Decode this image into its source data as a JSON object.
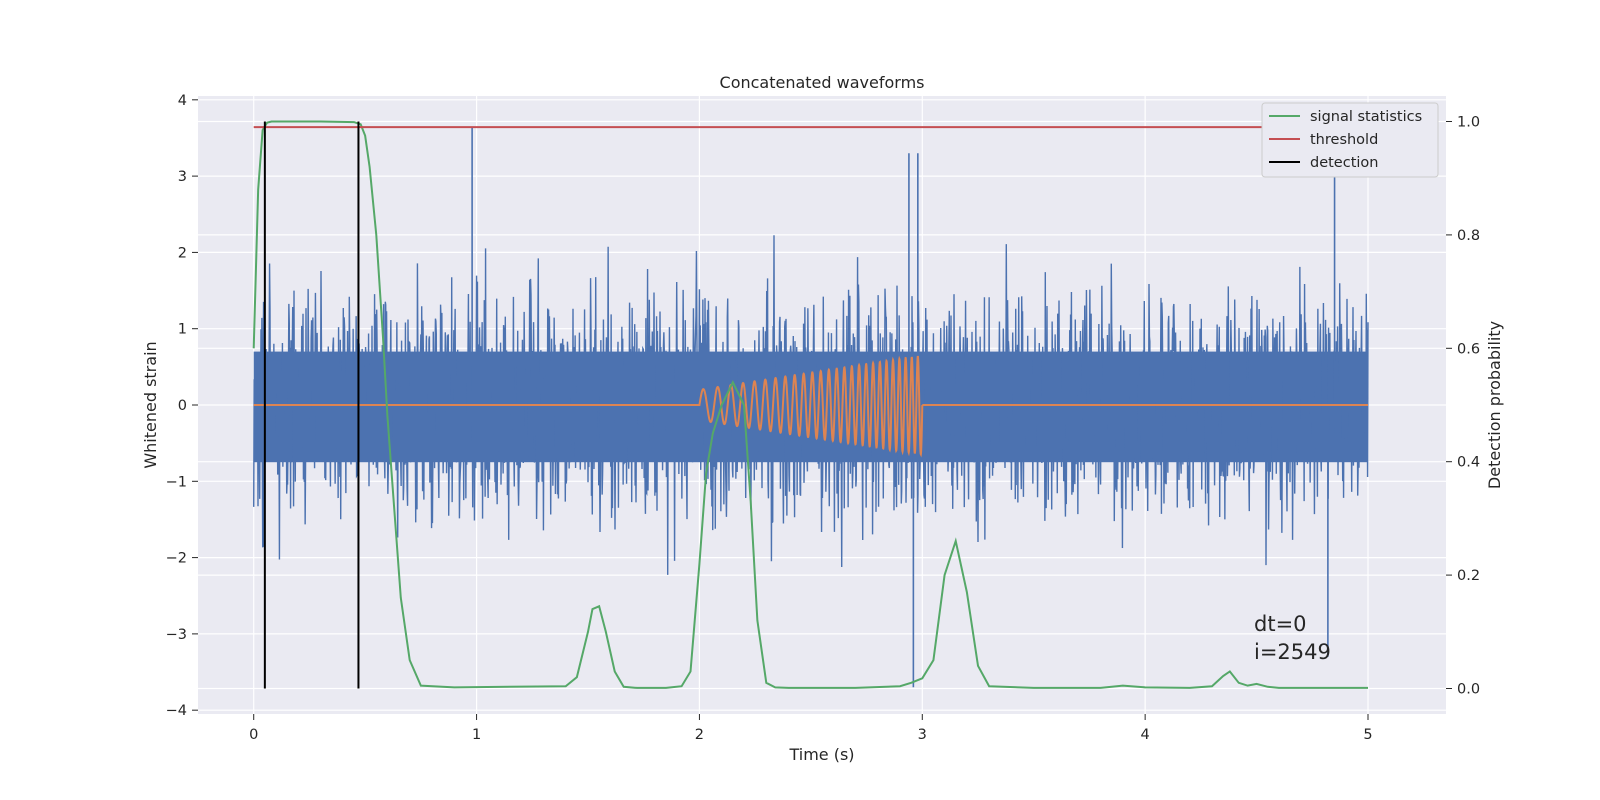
{
  "chart_data": {
    "type": "line",
    "title": "Concatenated waveforms",
    "xlabel": "Time (s)",
    "ylabel": "Whitened strain",
    "y2label": "Detection probability",
    "xlim": [
      -0.25,
      5.35
    ],
    "ylim": [
      -4.05,
      4.05
    ],
    "y2lim": [
      -0.045,
      1.045
    ],
    "x_ticks": [
      0,
      1,
      2,
      3,
      4,
      5
    ],
    "y_ticks": [
      -4,
      -3,
      -2,
      -1,
      0,
      1,
      2,
      3,
      4
    ],
    "y2_ticks": [
      0.0,
      0.2,
      0.4,
      0.6,
      0.8,
      1.0
    ],
    "x_tick_labels": [
      "0",
      "1",
      "2",
      "3",
      "4",
      "5"
    ],
    "y_tick_labels": [
      "−4",
      "−3",
      "−2",
      "−1",
      "0",
      "1",
      "2",
      "3",
      "4"
    ],
    "y2_tick_labels": [
      "0.0",
      "0.2",
      "0.4",
      "0.6",
      "0.8",
      "1.0"
    ],
    "grid": true,
    "legend_position": "top-right",
    "legend": [
      {
        "label": "signal statistics",
        "color": "#55a868"
      },
      {
        "label": "threshold",
        "color": "#c44e52"
      },
      {
        "label": "detection",
        "color": "#000000"
      }
    ],
    "series": [
      {
        "name": "signal statistics",
        "axis": "right",
        "color": "#55a868",
        "x": [
          0,
          0.02,
          0.04,
          0.06,
          0.08,
          0.1,
          0.3,
          0.45,
          0.48,
          0.5,
          0.52,
          0.55,
          0.58,
          0.6,
          0.63,
          0.66,
          0.7,
          0.75,
          0.9,
          1.4,
          1.45,
          1.5,
          1.52,
          1.55,
          1.58,
          1.62,
          1.66,
          1.72,
          1.85,
          1.92,
          1.96,
          2.0,
          2.03,
          2.06,
          2.1,
          2.15,
          2.2,
          2.23,
          2.26,
          2.3,
          2.34,
          2.4,
          2.7,
          2.9,
          2.95,
          3.0,
          3.05,
          3.1,
          3.15,
          3.2,
          3.25,
          3.3,
          3.5,
          3.8,
          3.9,
          4.0,
          4.2,
          4.3,
          4.35,
          4.38,
          4.42,
          4.46,
          4.5,
          4.55,
          4.6,
          4.8,
          5.0
        ],
        "y": [
          0.6,
          0.88,
          0.985,
          0.998,
          1.0,
          1.0,
          1.0,
          0.999,
          0.995,
          0.975,
          0.92,
          0.8,
          0.62,
          0.48,
          0.32,
          0.16,
          0.05,
          0.005,
          0.002,
          0.004,
          0.02,
          0.1,
          0.14,
          0.145,
          0.1,
          0.03,
          0.003,
          0.001,
          0.001,
          0.004,
          0.03,
          0.22,
          0.38,
          0.45,
          0.5,
          0.54,
          0.5,
          0.33,
          0.12,
          0.01,
          0.002,
          0.001,
          0.001,
          0.004,
          0.01,
          0.018,
          0.05,
          0.2,
          0.26,
          0.17,
          0.04,
          0.004,
          0.001,
          0.001,
          0.005,
          0.002,
          0.001,
          0.004,
          0.022,
          0.03,
          0.01,
          0.005,
          0.008,
          0.003,
          0.001,
          0.001,
          0.001
        ]
      },
      {
        "name": "threshold",
        "axis": "right",
        "color": "#c44e52",
        "x": [
          0,
          5
        ],
        "y": [
          0.99,
          0.99
        ]
      },
      {
        "name": "detection",
        "axis": "right",
        "color": "#000000",
        "type": "vlines",
        "x": [
          0.05,
          0.47
        ],
        "y_range": [
          0,
          1
        ]
      },
      {
        "axis": "left",
        "color": "#4c72b0",
        "type": "noise",
        "x_range": [
          0,
          5
        ],
        "dense_band": [
          -0.75,
          0.7
        ],
        "typical_extremes": [
          -2.5,
          2.7
        ],
        "spikes": [
          {
            "x": 0.98,
            "y": 3.65
          },
          {
            "x": 2.94,
            "y": 3.3
          },
          {
            "x": 2.96,
            "y": -3.7
          },
          {
            "x": 2.98,
            "y": 3.3
          },
          {
            "x": 4.85,
            "y": 3.2
          },
          {
            "x": 4.82,
            "y": -3.3
          }
        ]
      },
      {
        "axis": "left",
        "color": "#dd8452",
        "type": "chirp",
        "x_range": [
          2,
          3
        ],
        "amplitude_start": 0.2,
        "amplitude_end": 0.65,
        "cycles": 26
      }
    ],
    "annotations": [
      "dt=0",
      "i=2549"
    ]
  }
}
